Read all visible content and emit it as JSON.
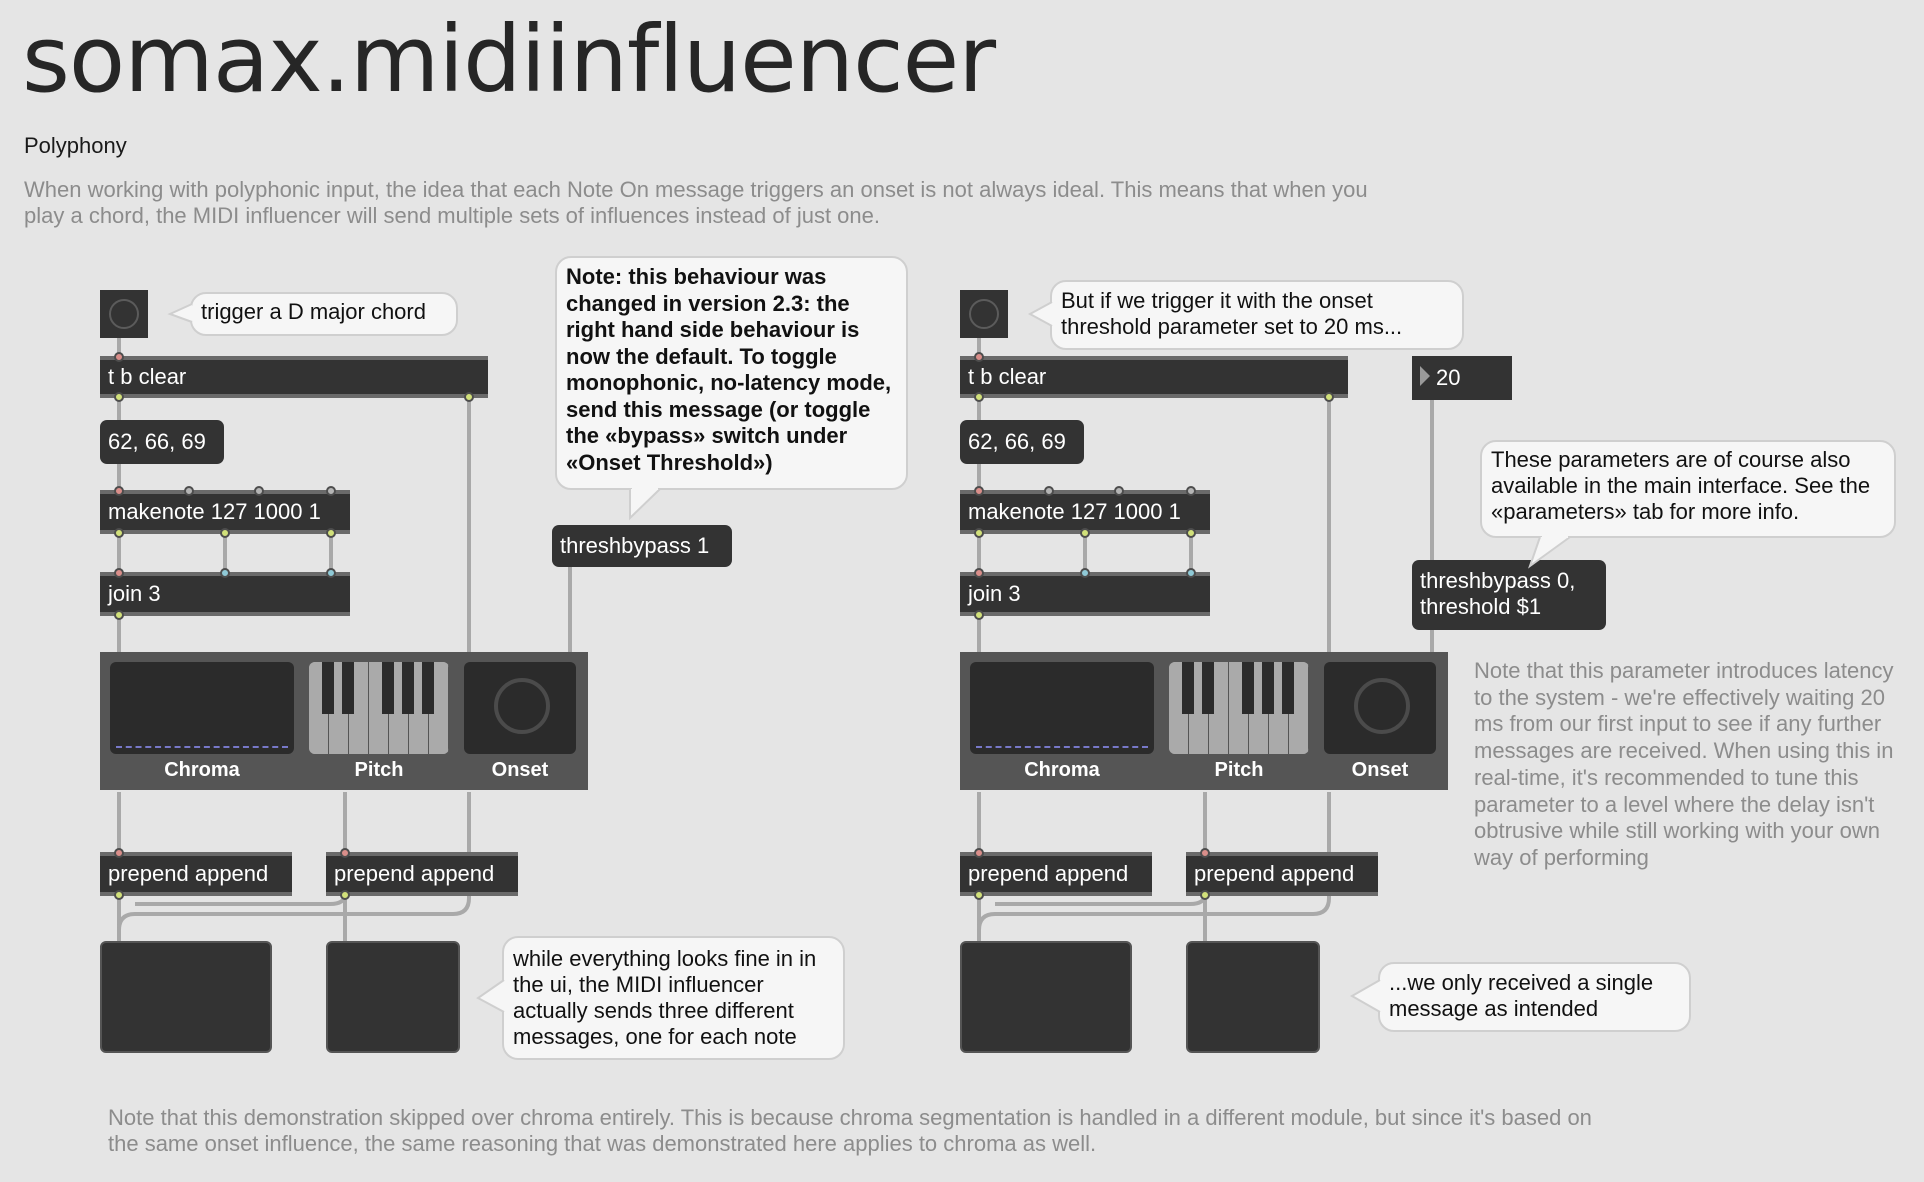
{
  "title": "somax.midiinfluencer",
  "subtitle": "Polyphony",
  "description": "When working with polyphonic input, the idea that each Note On message triggers an onset  is not always ideal. This means that when you play a chord, the MIDI influencer will send multiple sets of influences instead of just one.",
  "left": {
    "trigger_comment": "trigger a D major chord",
    "trigger_obj": "t b clear",
    "chord_msg": "62, 66, 69",
    "makenote_obj": "makenote 127 1000 1",
    "join_obj": "join 3",
    "threshbypass_msg": "threshbypass 1",
    "note_comment": "Note: this behaviour was changed in version 2.3: the right hand side behaviour is now the default. To toggle monophonic, no-latency mode, send this message (or toggle the «bypass» switch under «Onset Threshold»)",
    "influencer": {
      "chroma": "Chroma",
      "pitch": "Pitch",
      "onset": "Onset"
    },
    "prepend1": "prepend append",
    "prepend2": "prepend append",
    "result_comment": "while everything looks fine in in the ui, the MIDI influencer actually sends three different messages, one for each note"
  },
  "right": {
    "trigger_comment": "But if we trigger it with the onset threshold parameter set to 20 ms...",
    "trigger_obj": "t b clear",
    "chord_msg": "62, 66, 69",
    "makenote_obj": "makenote 127 1000 1",
    "join_obj": "join 3",
    "number_value": "20",
    "params_comment": "These parameters are of course also available in the main interface. See the «parameters» tab for more info.",
    "threshold_msg_line1": "threshbypass 0,",
    "threshold_msg_line2": "threshold $1",
    "influencer": {
      "chroma": "Chroma",
      "pitch": "Pitch",
      "onset": "Onset"
    },
    "prepend1": "prepend append",
    "prepend2": "prepend append",
    "result_comment": "...we only received a single message as intended",
    "latency_note": "Note that this parameter introduces latency to the system - we're effectively waiting 20 ms from our first input to see if any further messages are received. When using this in real-time, it's recommended to tune this parameter to a level where the delay isn't obtrusive while still working with your own way of performing"
  },
  "footer_note": "Note that this demonstration skipped over chroma entirely. This is because chroma segmentation is handled in a different module, but since it's based on the same onset influence, the same reasoning that was demonstrated here applies to chroma as well.",
  "colors": {
    "background": "#e5e5e5",
    "object": "#333333",
    "wire": "#a9a9a9",
    "comment_grey": "#8c8c8c"
  }
}
